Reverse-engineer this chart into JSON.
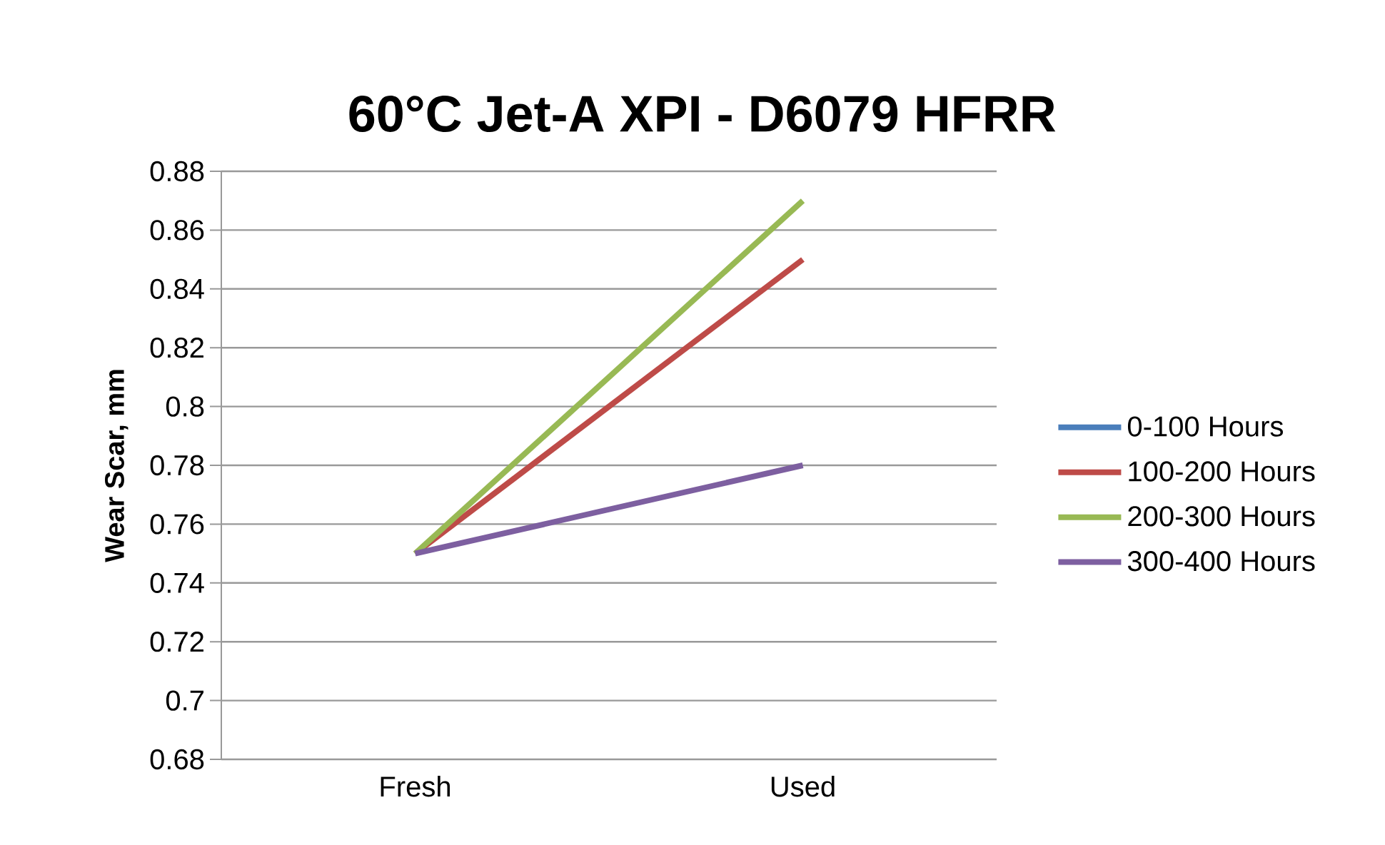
{
  "chart_data": {
    "type": "line",
    "title": "60°C  Jet-A XPI - D6079 HFRR",
    "ylabel": "Wear Scar, mm",
    "categories": [
      "Fresh",
      "Used"
    ],
    "series": [
      {
        "name": "0-100 Hours",
        "color": "#4a7ebb",
        "values": [
          null,
          null
        ]
      },
      {
        "name": "100-200 Hours",
        "color": "#be4b48",
        "values": [
          0.75,
          0.85
        ]
      },
      {
        "name": "200-300 Hours",
        "color": "#98b954",
        "values": [
          0.75,
          0.87
        ]
      },
      {
        "name": "300-400 Hours",
        "color": "#7d5fa0",
        "values": [
          0.75,
          0.78
        ]
      }
    ],
    "ylim": [
      0.68,
      0.88
    ],
    "yticks": [
      0.68,
      0.7,
      0.72,
      0.74,
      0.76,
      0.78,
      0.8,
      0.82,
      0.84,
      0.86,
      0.88
    ],
    "grid": "y",
    "legend": "right",
    "line_style": "solid"
  }
}
